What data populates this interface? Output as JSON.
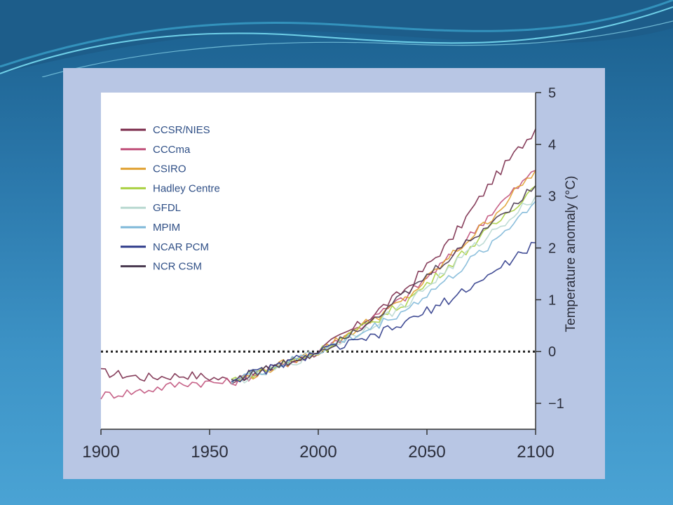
{
  "chart_data": {
    "type": "line",
    "title": "",
    "xlabel": "",
    "ylabel": "Temperature anomaly (°C)",
    "xlim": [
      1900,
      2100
    ],
    "ylim": [
      -1.5,
      5
    ],
    "x_ticks": [
      1900,
      1950,
      2000,
      2050,
      2100
    ],
    "y_ticks": [
      -1,
      0,
      1,
      2,
      3,
      4,
      5
    ],
    "y_tick_labels": [
      "−1",
      "0",
      "1",
      "2",
      "3",
      "4",
      "5"
    ],
    "y_axis_side": "right",
    "legend_position": "top-left",
    "reference_line": {
      "y": 0,
      "style": "dotted"
    },
    "series": [
      {
        "name": "CCSR/NIES",
        "color": "#7a2a4a",
        "x": [
          1900,
          1920,
          1940,
          1960,
          1980,
          2000,
          2020,
          2040,
          2060,
          2080,
          2100
        ],
        "y": [
          -0.4,
          -0.5,
          -0.45,
          -0.55,
          -0.3,
          0.0,
          0.55,
          1.2,
          2.1,
          3.3,
          4.3
        ]
      },
      {
        "name": "CCCma",
        "color": "#c0507a",
        "x": [
          1900,
          1920,
          1940,
          1960,
          1980,
          2000,
          2020,
          2040,
          2060,
          2080,
          2100
        ],
        "y": [
          -0.85,
          -0.75,
          -0.6,
          -0.6,
          -0.3,
          0.0,
          0.5,
          1.05,
          1.8,
          2.7,
          3.5
        ]
      },
      {
        "name": "CSIRO",
        "color": "#e0a030",
        "x": [
          1960,
          1980,
          2000,
          2020,
          2040,
          2060,
          2080,
          2100
        ],
        "y": [
          -0.6,
          -0.3,
          0.0,
          0.5,
          1.0,
          1.8,
          2.6,
          3.5
        ]
      },
      {
        "name": "Hadley Centre",
        "color": "#a8d040",
        "x": [
          1960,
          1980,
          2000,
          2020,
          2040,
          2060,
          2080,
          2100
        ],
        "y": [
          -0.55,
          -0.3,
          0.0,
          0.45,
          0.95,
          1.65,
          2.4,
          3.2
        ]
      },
      {
        "name": "GFDL",
        "color": "#b8d8d0",
        "x": [
          1960,
          1980,
          2000,
          2020,
          2040,
          2060,
          2080,
          2100
        ],
        "y": [
          -0.6,
          -0.35,
          0.0,
          0.4,
          0.9,
          1.6,
          2.3,
          3.0
        ]
      },
      {
        "name": "MPIM",
        "color": "#7fb8d8",
        "x": [
          1960,
          1980,
          2000,
          2020,
          2040,
          2060,
          2080,
          2100
        ],
        "y": [
          -0.55,
          -0.3,
          0.0,
          0.35,
          0.8,
          1.4,
          2.1,
          2.9
        ]
      },
      {
        "name": "NCAR PCM",
        "color": "#2e3a8a",
        "x": [
          1960,
          1980,
          2000,
          2020,
          2040,
          2060,
          2080,
          2100
        ],
        "y": [
          -0.55,
          -0.3,
          0.0,
          0.2,
          0.55,
          1.0,
          1.5,
          2.1
        ]
      },
      {
        "name": "NCR CSM",
        "color": "#4a3a50",
        "x": [
          1960,
          1980,
          2000,
          2020,
          2040,
          2060,
          2080,
          2100
        ],
        "y": [
          -0.55,
          -0.3,
          0.0,
          0.5,
          1.1,
          1.8,
          2.5,
          3.2
        ]
      }
    ],
    "grid": false
  }
}
